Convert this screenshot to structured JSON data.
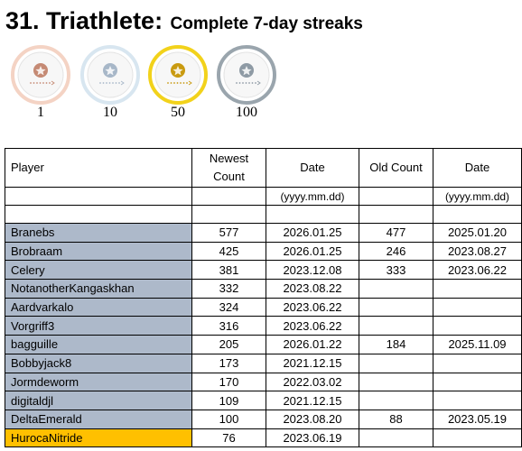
{
  "title": {
    "number": "31. Triathlete:",
    "subtitle": "Complete 7-day streaks"
  },
  "medals": [
    {
      "label": "1",
      "ring": "#f4d3c4",
      "inner": "#c58a74"
    },
    {
      "label": "10",
      "ring": "#d8e6f0",
      "inner": "#a7b7c8"
    },
    {
      "label": "50",
      "ring": "#f2d21b",
      "inner": "#c99a10"
    },
    {
      "label": "100",
      "ring": "#9aa5ad",
      "inner": "#8e9aa4"
    }
  ],
  "table": {
    "headers": [
      "Player",
      "Newest Count",
      "Date",
      "Old Count",
      "Date"
    ],
    "subheaders": [
      "",
      "",
      "(yyyy.mm.dd)",
      "",
      "(yyyy.mm.dd)"
    ],
    "rows": [
      {
        "player": "Branebs",
        "newest": "577",
        "date": "2026.01.25",
        "old": "477",
        "old_date": "2025.01.20"
      },
      {
        "player": "Brobraam",
        "newest": "425",
        "date": "2026.01.25",
        "old": "246",
        "old_date": "2023.08.27"
      },
      {
        "player": "Celery",
        "newest": "381",
        "date": "2023.12.08",
        "old": "333",
        "old_date": "2023.06.22"
      },
      {
        "player": "NotanotherKangaskhan",
        "newest": "332",
        "date": "2023.08.22",
        "old": "",
        "old_date": ""
      },
      {
        "player": "Aardvarkalo",
        "newest": "324",
        "date": "2023.06.22",
        "old": "",
        "old_date": ""
      },
      {
        "player": "Vorgriff3",
        "newest": "316",
        "date": "2023.06.22",
        "old": "",
        "old_date": ""
      },
      {
        "player": "bagguille",
        "newest": "205",
        "date": "2026.01.22",
        "old": "184",
        "old_date": "2025.11.09"
      },
      {
        "player": "Bobbyjack8",
        "newest": "173",
        "date": "2021.12.15",
        "old": "",
        "old_date": ""
      },
      {
        "player": "Jormdeworm",
        "newest": "170",
        "date": "2022.03.02",
        "old": "",
        "old_date": ""
      },
      {
        "player": "digitaldjl",
        "newest": "109",
        "date": "2021.12.15",
        "old": "",
        "old_date": ""
      },
      {
        "player": "DeltaEmerald",
        "newest": "100",
        "date": "2023.08.20",
        "old": "88",
        "old_date": "2023.05.19"
      },
      {
        "player": "HurocaNitride",
        "newest": "76",
        "date": "2023.06.19",
        "old": "",
        "old_date": "",
        "highlight": true
      }
    ]
  }
}
